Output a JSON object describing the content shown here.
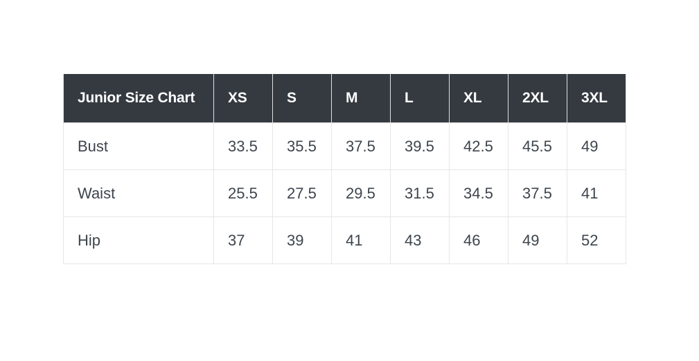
{
  "page": {
    "background": "#ffffff"
  },
  "table": {
    "title": "Junior Size Chart",
    "columns": [
      "XS",
      "S",
      "M",
      "L",
      "XL",
      "2XL",
      "3XL"
    ],
    "rows": [
      {
        "label": "Bust",
        "values": [
          "33.5",
          "35.5",
          "37.5",
          "39.5",
          "42.5",
          "45.5",
          "49"
        ]
      },
      {
        "label": "Waist",
        "values": [
          "25.5",
          "27.5",
          "29.5",
          "31.5",
          "34.5",
          "37.5",
          "41"
        ]
      },
      {
        "label": "Hip",
        "values": [
          "37",
          "39",
          "41",
          "43",
          "46",
          "49",
          "52"
        ]
      }
    ],
    "colors": {
      "header_background": "#343a40",
      "header_text": "#ffffff",
      "body_text": "#3d444c",
      "border": "#e1e1e1"
    }
  },
  "chart_data": {
    "type": "table",
    "title": "Junior Size Chart",
    "categories": [
      "XS",
      "S",
      "M",
      "L",
      "XL",
      "2XL",
      "3XL"
    ],
    "series": [
      {
        "name": "Bust",
        "values": [
          33.5,
          35.5,
          37.5,
          39.5,
          42.5,
          45.5,
          49
        ]
      },
      {
        "name": "Waist",
        "values": [
          25.5,
          27.5,
          29.5,
          31.5,
          34.5,
          37.5,
          41
        ]
      },
      {
        "name": "Hip",
        "values": [
          37,
          39,
          41,
          43,
          46,
          49,
          52
        ]
      }
    ],
    "layout": "header row dark, measurement rows white, grid on"
  }
}
